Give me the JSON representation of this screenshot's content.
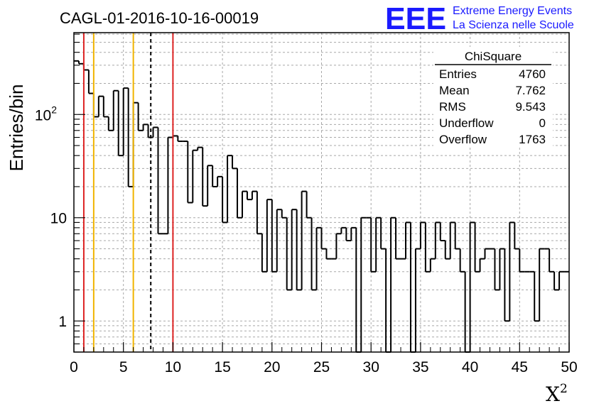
{
  "chart_data": {
    "type": "bar",
    "title": "CAGL-01-2016-10-16-00019",
    "xlabel": "X",
    "xlabel_superscript": "2",
    "ylabel": "Entries/bin",
    "xlim": [
      0,
      50
    ],
    "ylim": [
      0.5,
      620
    ],
    "log_y": true,
    "grid": true,
    "bin_width": 0.5,
    "x_ticks": [
      {
        "value": 0,
        "label": "0"
      },
      {
        "value": 5,
        "label": "5"
      },
      {
        "value": 10,
        "label": "10"
      },
      {
        "value": 15,
        "label": "15"
      },
      {
        "value": 20,
        "label": "20"
      },
      {
        "value": 25,
        "label": "25"
      },
      {
        "value": 30,
        "label": "30"
      },
      {
        "value": 35,
        "label": "35"
      },
      {
        "value": 40,
        "label": "40"
      },
      {
        "value": 45,
        "label": "45"
      },
      {
        "value": 50,
        "label": "50"
      }
    ],
    "y_ticks": [
      {
        "value": 1,
        "label": "1"
      },
      {
        "value": 10,
        "label": "10"
      },
      {
        "value": 100,
        "label": "10",
        "exponent": "2"
      }
    ],
    "values": [
      330,
      310,
      270,
      160,
      95,
      150,
      95,
      70,
      170,
      40,
      180,
      20,
      130,
      70,
      80,
      60,
      75,
      7,
      7,
      60,
      62,
      55,
      55,
      14,
      45,
      48,
      13,
      32,
      20,
      25,
      9,
      40,
      30,
      10,
      18,
      15,
      18,
      7,
      3,
      15,
      3,
      12,
      10,
      2,
      12,
      2,
      18,
      10,
      2,
      8,
      5,
      4,
      4,
      7,
      8,
      6,
      8,
      0.3,
      10,
      10,
      3,
      10,
      5,
      0.3,
      10,
      4,
      4,
      9,
      0.3,
      5,
      9,
      3,
      4,
      9,
      6,
      4,
      9,
      5,
      3,
      0.3,
      9,
      3,
      4,
      5,
      5,
      2,
      5,
      1,
      9,
      5,
      3,
      3,
      3,
      1,
      5,
      5,
      3,
      2,
      3,
      3
    ],
    "vertical_lines": [
      {
        "x": 1,
        "color": "#dd2222",
        "style": "solid"
      },
      {
        "x": 2,
        "color": "#f0b400",
        "style": "solid"
      },
      {
        "x": 6,
        "color": "#f0b400",
        "style": "solid"
      },
      {
        "x": 7.762,
        "color": "#000000",
        "style": "dashed"
      },
      {
        "x": 10,
        "color": "#dd2222",
        "style": "solid"
      }
    ],
    "stats_box": {
      "title": "ChiSquare",
      "rows": [
        {
          "label": "Entries",
          "value": "4760"
        },
        {
          "label": "Mean",
          "value": "7.762"
        },
        {
          "label": "RMS",
          "value": "9.543"
        },
        {
          "label": "Underflow",
          "value": "0"
        },
        {
          "label": "Overflow",
          "value": "1763"
        }
      ]
    },
    "logo": {
      "mark": "EEE",
      "line1": "Extreme Energy Events",
      "line2": "La Scienza nelle Scuole",
      "color": "#1a1aff"
    }
  }
}
